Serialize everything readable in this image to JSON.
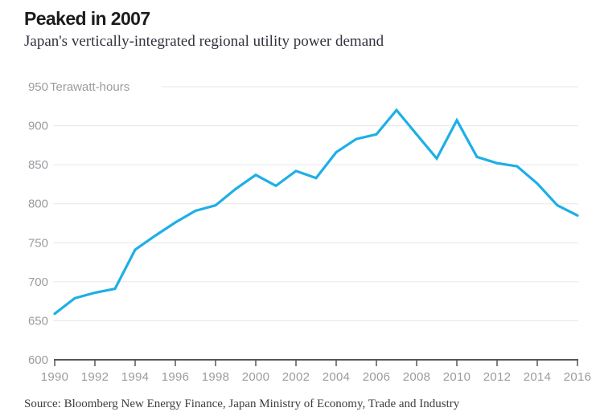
{
  "chart_data": {
    "type": "line",
    "title": "Peaked in 2007",
    "subtitle": "Japan's vertically-integrated regional utility power demand",
    "series_name": "Japan regional utility power demand",
    "unit_label": "Terawatt-hours",
    "xlabel": "",
    "ylabel": "Terawatt-hours",
    "x": [
      1990,
      1991,
      1992,
      1993,
      1994,
      1995,
      1996,
      1997,
      1998,
      1999,
      2000,
      2001,
      2002,
      2003,
      2004,
      2005,
      2006,
      2007,
      2008,
      2009,
      2010,
      2011,
      2012,
      2013,
      2014,
      2015,
      2016
    ],
    "values": [
      659,
      679,
      686,
      691,
      741,
      759,
      776,
      791,
      798,
      819,
      837,
      823,
      842,
      833,
      866,
      883,
      889,
      920,
      889,
      858,
      907,
      860,
      852,
      848,
      826,
      798,
      785
    ],
    "ylim": [
      600,
      950
    ],
    "yticks": [
      600,
      650,
      700,
      750,
      800,
      850,
      900,
      950
    ],
    "xticks": [
      1990,
      1992,
      1994,
      1996,
      1998,
      2000,
      2002,
      2004,
      2006,
      2008,
      2010,
      2012,
      2014,
      2016
    ],
    "grid": true,
    "legend": "none",
    "peak_year": 2007,
    "peak_value": 920
  },
  "source_line": "Source: Bloomberg New Energy Finance, Japan Ministry of Economy, Trade and Industry",
  "colors": {
    "line": "#1eafe6",
    "grid": "#e7e7e7",
    "axis": "#55565a",
    "tick_label": "#9b9ba0",
    "title": "#1c1c1c",
    "subtitle": "#32323e",
    "source": "#3d3d3d",
    "background": "#ffffff"
  }
}
